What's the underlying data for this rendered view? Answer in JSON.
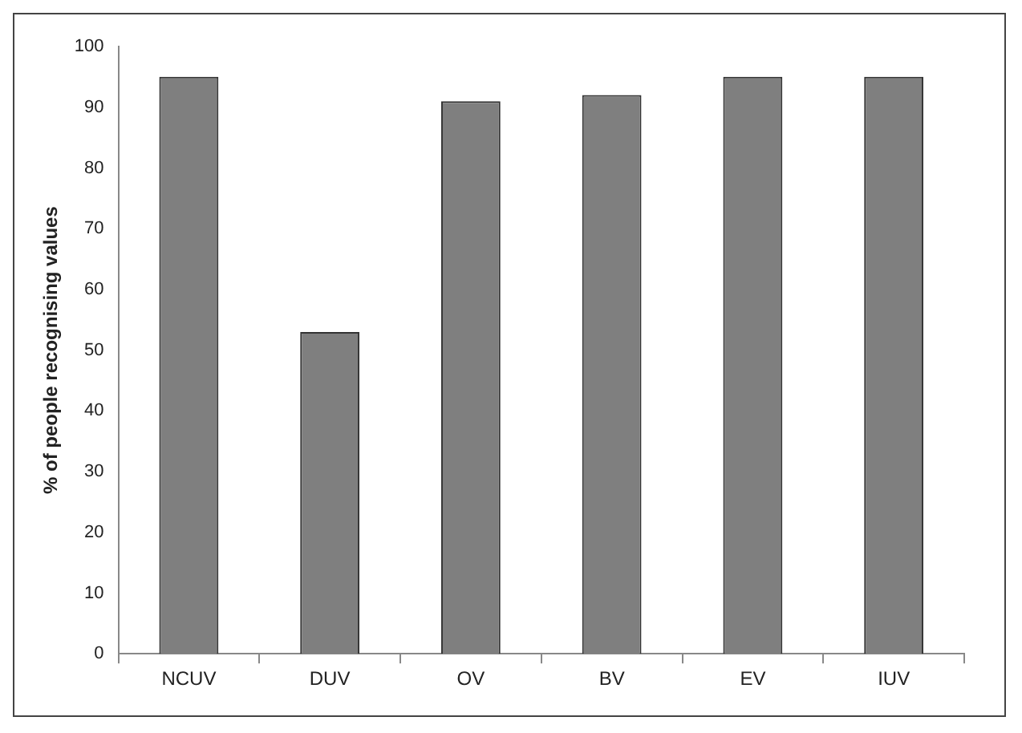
{
  "chart_data": {
    "type": "bar",
    "ylabel": "% of people recognising values",
    "categories": [
      "NCUV",
      "DUV",
      "OV",
      "BV",
      "EV",
      "IUV"
    ],
    "values": [
      95,
      53,
      91,
      92,
      95,
      95
    ],
    "color": "#7f7f7f",
    "ylim": [
      0,
      100
    ],
    "yticks": [
      0,
      10,
      20,
      30,
      40,
      50,
      60,
      70,
      80,
      90,
      100
    ],
    "grid": false,
    "legend": false
  }
}
